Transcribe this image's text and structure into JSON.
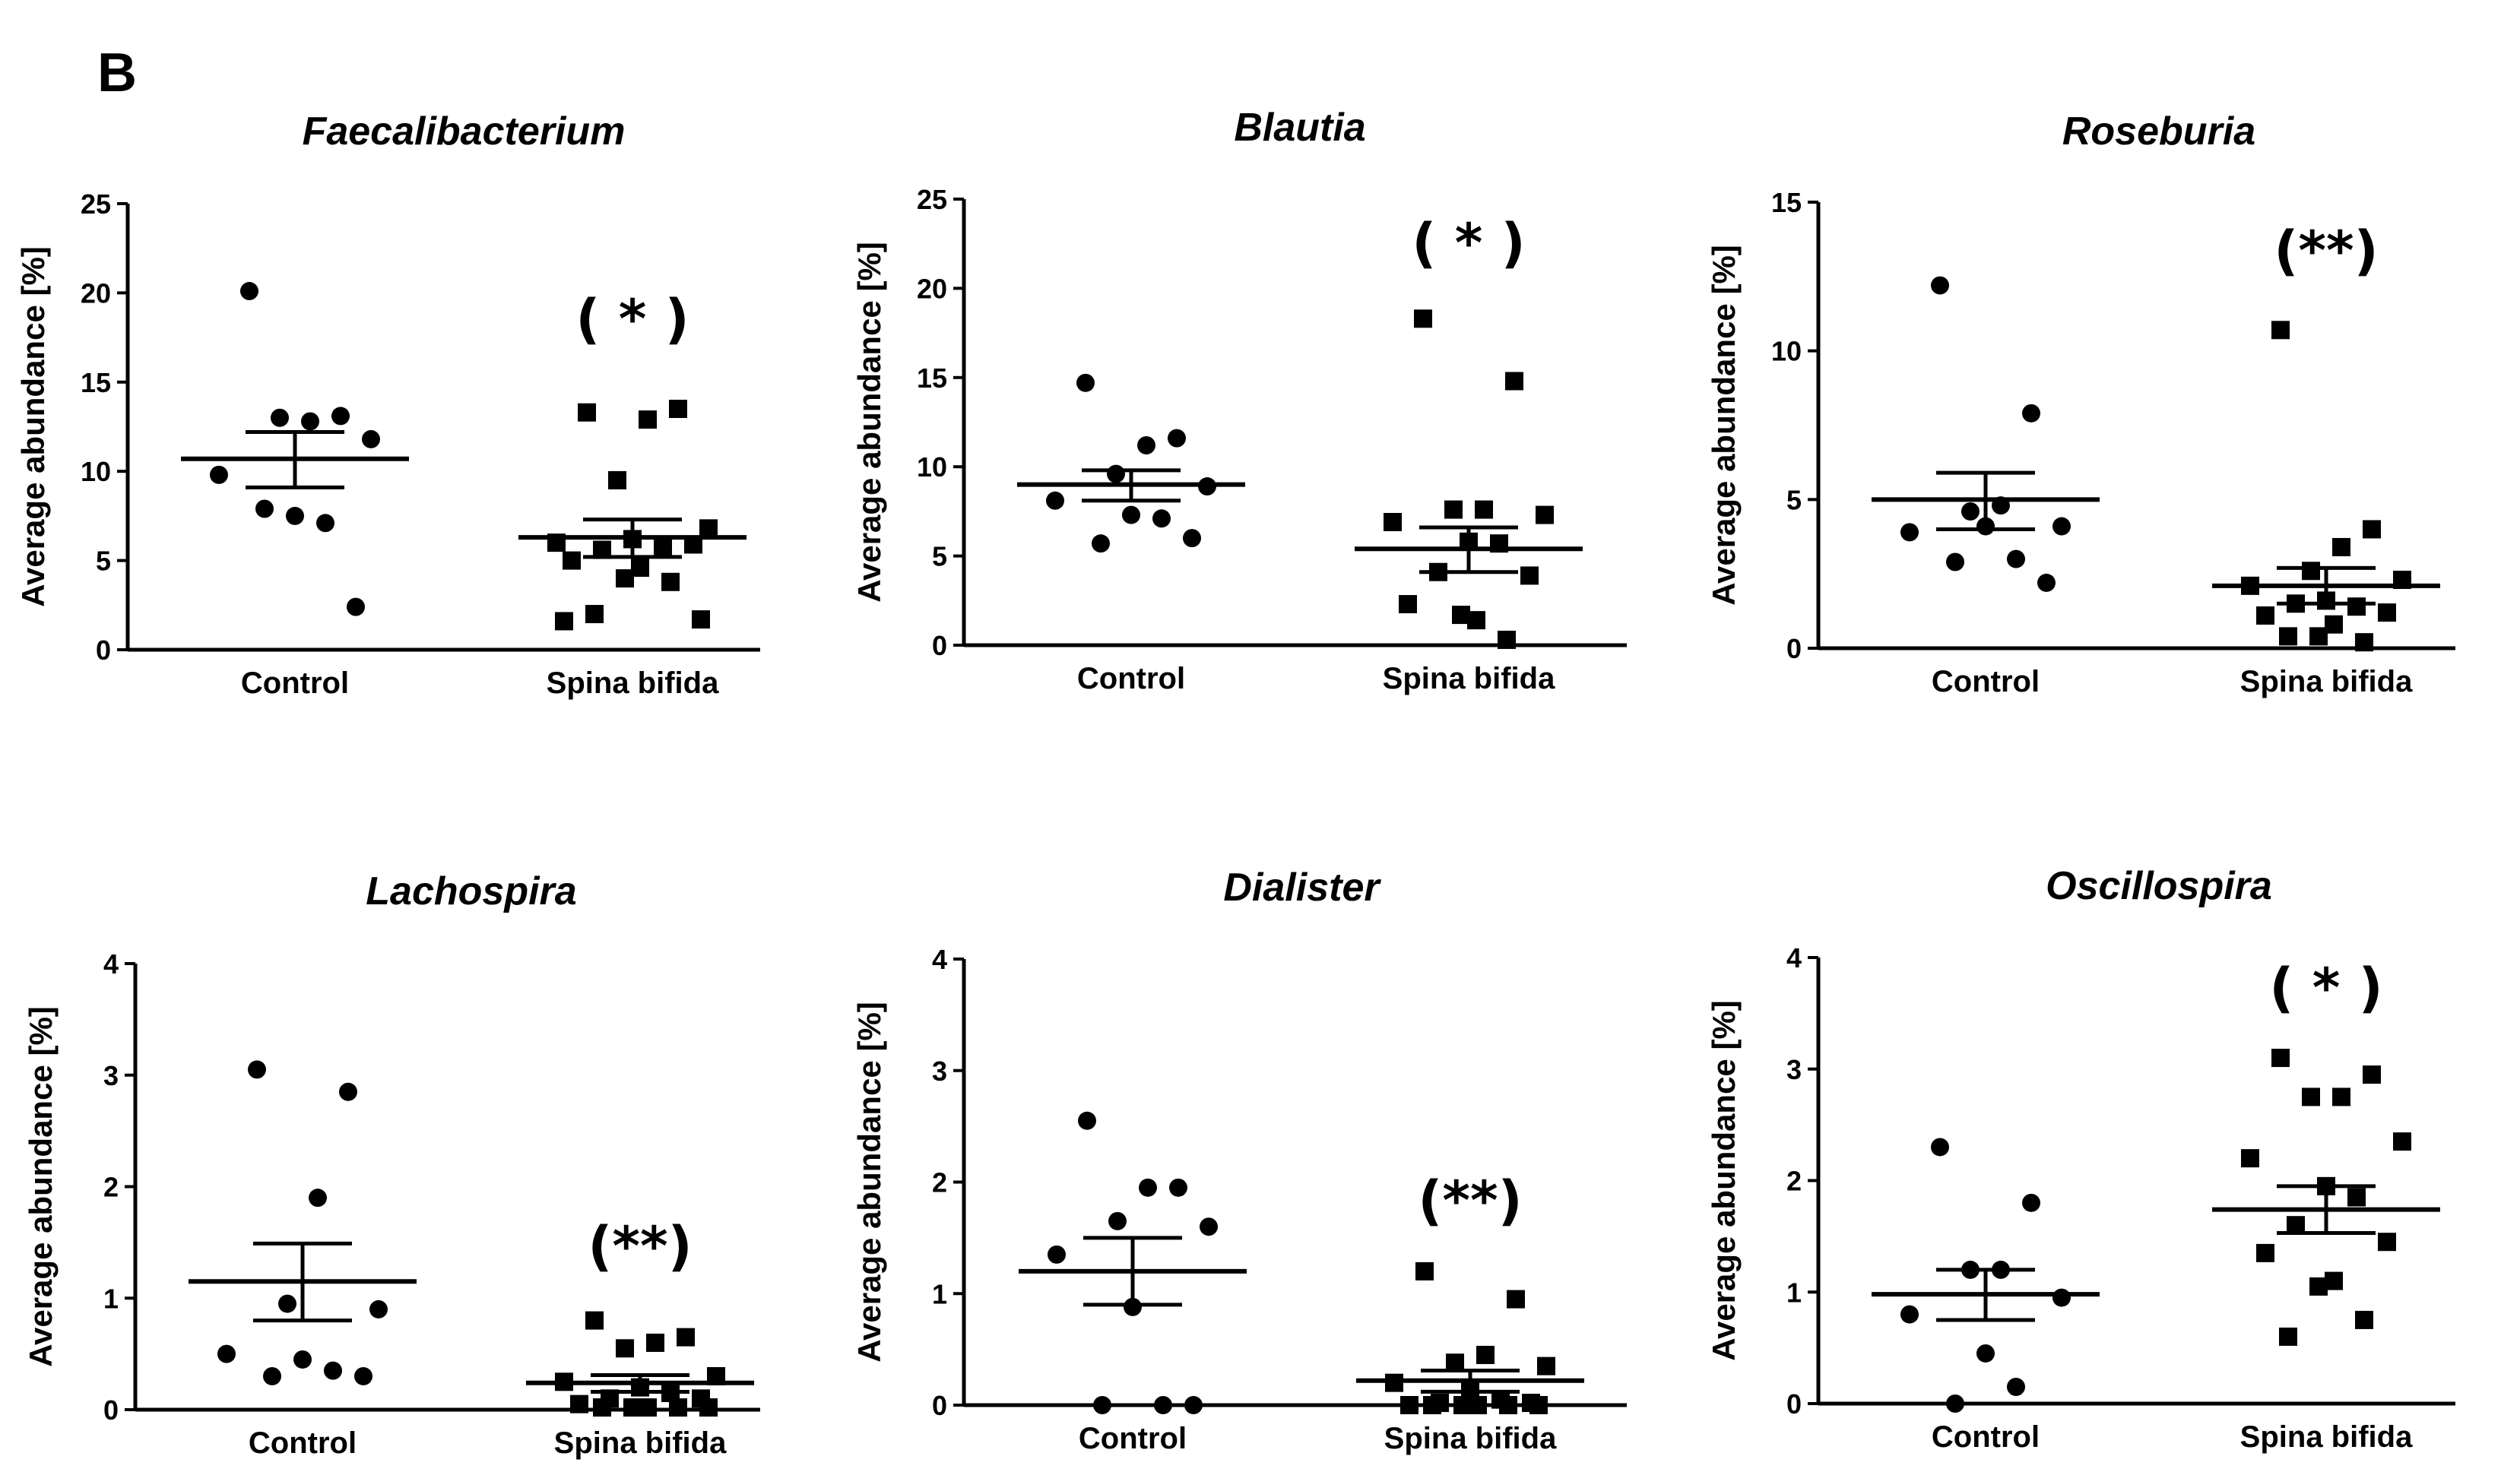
{
  "figure": {
    "panel_label": "B"
  },
  "chart_data": [
    {
      "type": "scatter",
      "title": "Faecalibacterium",
      "ylabel": "Average abundance [%]",
      "ylim": [
        0,
        25
      ],
      "yticks": [
        0,
        5,
        10,
        15,
        20,
        25
      ],
      "categories": [
        "Control",
        "Spina bifida"
      ],
      "significance": "( * )",
      "significance_group": "Spina bifida",
      "series": [
        {
          "name": "Control",
          "marker": "circle",
          "mean": 10.7,
          "sem_low": 9.1,
          "sem_high": 12.2,
          "values": [
            20.1,
            13.1,
            12.8,
            13.0,
            11.8,
            9.8,
            7.5,
            7.1,
            7.9,
            2.4
          ]
        },
        {
          "name": "Spina bifida",
          "marker": "square",
          "mean": 6.3,
          "sem_low": 5.2,
          "sem_high": 7.3,
          "values": [
            13.3,
            13.5,
            12.9,
            9.5,
            6.8,
            6.0,
            6.2,
            5.8,
            5.6,
            5.9,
            5.0,
            4.6,
            4.0,
            3.8,
            2.0,
            1.7,
            1.6
          ]
        }
      ]
    },
    {
      "type": "scatter",
      "title": "Blautia",
      "ylabel": "Average abundance [%]",
      "ylim": [
        0,
        25
      ],
      "yticks": [
        0,
        5,
        10,
        15,
        20,
        25
      ],
      "categories": [
        "Control",
        "Spina bifida"
      ],
      "significance": "( * )",
      "significance_group": "Spina bifida",
      "series": [
        {
          "name": "Control",
          "marker": "circle",
          "mean": 9.0,
          "sem_low": 8.1,
          "sem_high": 9.8,
          "values": [
            14.7,
            11.6,
            11.2,
            9.6,
            8.9,
            8.1,
            7.3,
            7.1,
            5.7,
            6.0
          ]
        },
        {
          "name": "Spina bifida",
          "marker": "square",
          "mean": 5.4,
          "sem_low": 4.1,
          "sem_high": 6.6,
          "values": [
            18.3,
            14.8,
            7.6,
            7.6,
            7.3,
            6.9,
            5.8,
            5.7,
            4.1,
            3.9,
            2.3,
            1.4,
            1.7,
            0.3
          ]
        }
      ]
    },
    {
      "type": "scatter",
      "title": "Roseburia",
      "ylabel": "Average abundance [%]",
      "ylim": [
        0,
        15
      ],
      "yticks": [
        0,
        5,
        10,
        15
      ],
      "categories": [
        "Control",
        "Spina bifida"
      ],
      "significance": "(**)",
      "significance_group": "Spina bifida",
      "series": [
        {
          "name": "Control",
          "marker": "circle",
          "mean": 5.0,
          "sem_low": 4.0,
          "sem_high": 5.9,
          "values": [
            12.2,
            7.9,
            4.8,
            4.6,
            4.1,
            3.9,
            4.1,
            3.0,
            2.9,
            2.2
          ]
        },
        {
          "name": "Spina bifida",
          "marker": "square",
          "mean": 2.1,
          "sem_low": 1.5,
          "sem_high": 2.7,
          "values": [
            10.7,
            4.0,
            3.4,
            2.6,
            2.3,
            2.1,
            1.6,
            1.4,
            1.5,
            1.2,
            1.1,
            0.8,
            0.4,
            0.2,
            0.4
          ]
        }
      ]
    },
    {
      "type": "scatter",
      "title": "Lachospira",
      "ylabel": "Average abundance [%]",
      "ylim": [
        0,
        4
      ],
      "yticks": [
        0,
        1,
        2,
        3,
        4
      ],
      "categories": [
        "Control",
        "Spina bifida"
      ],
      "significance": "(**)",
      "significance_group": "Spina bifida",
      "series": [
        {
          "name": "Control",
          "marker": "circle",
          "mean": 1.15,
          "sem_low": 0.8,
          "sem_high": 1.49,
          "values": [
            3.05,
            2.85,
            1.9,
            0.95,
            0.9,
            0.5,
            0.45,
            0.35,
            0.3,
            0.3
          ]
        },
        {
          "name": "Spina bifida",
          "marker": "square",
          "mean": 0.24,
          "sem_low": 0.16,
          "sem_high": 0.31,
          "values": [
            0.8,
            0.65,
            0.6,
            0.55,
            0.3,
            0.25,
            0.2,
            0.15,
            0.1,
            0.1,
            0.05,
            0.02,
            0.02,
            0.02,
            0.02,
            0.02
          ]
        }
      ]
    },
    {
      "type": "scatter",
      "title": "Dialister",
      "ylabel": "Average abundance [%]",
      "ylim": [
        0,
        4
      ],
      "yticks": [
        0,
        1,
        2,
        3,
        4
      ],
      "categories": [
        "Control",
        "Spina bifida"
      ],
      "significance": "(**)",
      "significance_group": "Spina bifida",
      "series": [
        {
          "name": "Control",
          "marker": "circle",
          "mean": 1.2,
          "sem_low": 0.9,
          "sem_high": 1.5,
          "values": [
            2.55,
            1.95,
            1.95,
            1.65,
            1.6,
            1.35,
            0.88,
            0.0,
            0.0,
            0.0
          ]
        },
        {
          "name": "Spina bifida",
          "marker": "square",
          "mean": 0.22,
          "sem_low": 0.12,
          "sem_high": 0.31,
          "values": [
            1.2,
            0.95,
            0.45,
            0.38,
            0.35,
            0.2,
            0.15,
            0.05,
            0.02,
            0.02,
            0.0,
            0.0,
            0.0,
            0.0,
            0.0,
            0.0
          ]
        }
      ]
    },
    {
      "type": "scatter",
      "title": "Oscillospira",
      "ylabel": "Average abundance [%]",
      "ylim": [
        0,
        4
      ],
      "yticks": [
        0,
        1,
        2,
        3,
        4
      ],
      "categories": [
        "Control",
        "Spina bifida"
      ],
      "significance": "( * )",
      "significance_group": "Spina bifida",
      "series": [
        {
          "name": "Control",
          "marker": "circle",
          "mean": 0.98,
          "sem_low": 0.75,
          "sem_high": 1.2,
          "values": [
            2.3,
            1.8,
            1.2,
            1.2,
            0.95,
            0.8,
            0.45,
            0.15,
            0.0
          ]
        },
        {
          "name": "Spina bifida",
          "marker": "square",
          "mean": 1.74,
          "sem_low": 1.53,
          "sem_high": 1.95,
          "values": [
            3.1,
            2.95,
            2.75,
            2.75,
            2.35,
            2.2,
            1.95,
            1.85,
            1.6,
            1.45,
            1.35,
            1.1,
            1.05,
            0.75,
            0.6
          ]
        }
      ]
    }
  ]
}
